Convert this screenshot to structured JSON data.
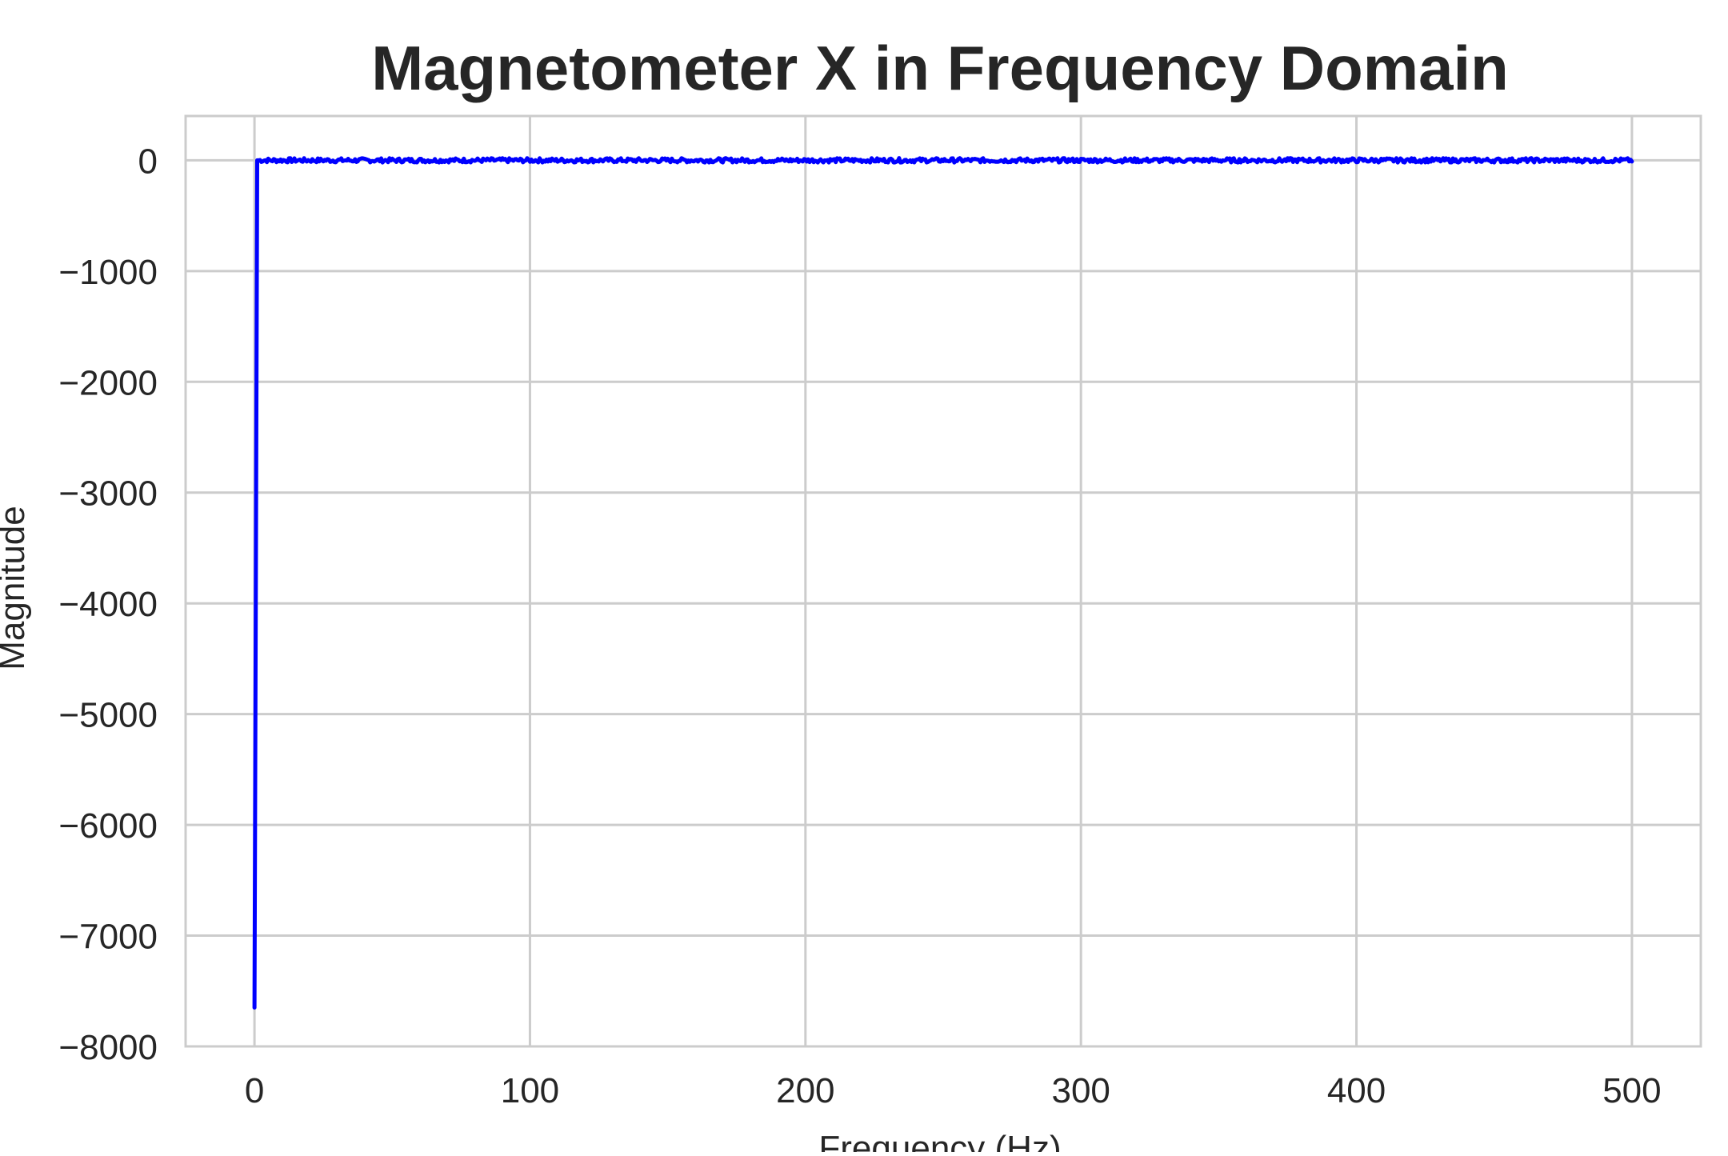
{
  "chart_data": {
    "type": "line",
    "title": "Magnetometer X in Frequency Domain",
    "xlabel": "Frequency (Hz)",
    "ylabel": "Magnitude",
    "xlim": [
      -25,
      525
    ],
    "ylim": [
      -8000,
      400
    ],
    "xticks": [
      0,
      100,
      200,
      300,
      400,
      500
    ],
    "xtick_labels": [
      "0",
      "100",
      "200",
      "300",
      "400",
      "500"
    ],
    "yticks": [
      0,
      -1000,
      -2000,
      -3000,
      -4000,
      -5000,
      -6000,
      -7000,
      -8000
    ],
    "ytick_labels": [
      "0",
      "−1000",
      "−2000",
      "−3000",
      "−4000",
      "−5000",
      "−6000",
      "−7000",
      "−8000"
    ],
    "grid": true,
    "series": [
      {
        "color": "#0000ff",
        "x": [
          0,
          1,
          500
        ],
        "y": [
          -7650,
          0,
          0
        ],
        "noise_amplitude_after_peak": 20
      }
    ]
  }
}
